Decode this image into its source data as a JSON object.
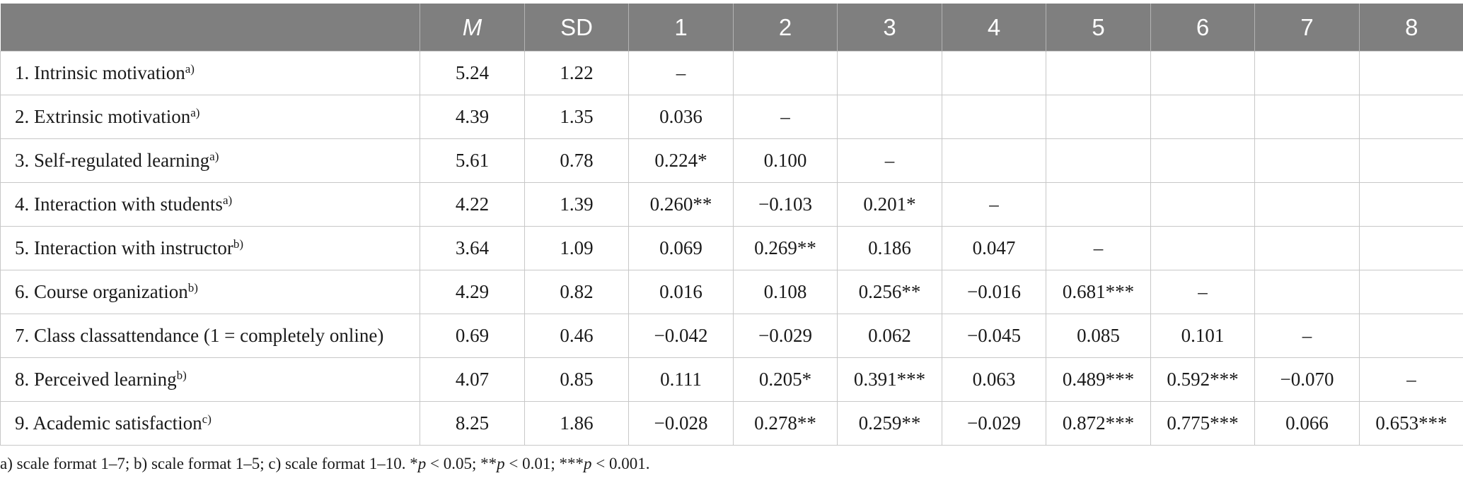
{
  "table": {
    "headers": [
      "",
      "M",
      "SD",
      "1",
      "2",
      "3",
      "4",
      "5",
      "6",
      "7",
      "8"
    ],
    "rows": [
      {
        "label": "1. Intrinsic motivation",
        "sup": "a)",
        "cells": [
          "5.24",
          "1.22",
          "–",
          "",
          "",
          "",
          "",
          "",
          "",
          ""
        ]
      },
      {
        "label": "2. Extrinsic motivation",
        "sup": "a)",
        "cells": [
          "4.39",
          "1.35",
          "0.036",
          "–",
          "",
          "",
          "",
          "",
          "",
          ""
        ]
      },
      {
        "label": "3. Self-regulated learning",
        "sup": "a)",
        "cells": [
          "5.61",
          "0.78",
          "0.224*",
          "0.100",
          "–",
          "",
          "",
          "",
          "",
          ""
        ]
      },
      {
        "label": "4. Interaction with students",
        "sup": "a)",
        "cells": [
          "4.22",
          "1.39",
          "0.260**",
          "−0.103",
          "0.201*",
          "–",
          "",
          "",
          "",
          ""
        ]
      },
      {
        "label": "5. Interaction with instructor",
        "sup": "b)",
        "cells": [
          "3.64",
          "1.09",
          "0.069",
          "0.269**",
          "0.186",
          "0.047",
          "–",
          "",
          "",
          ""
        ]
      },
      {
        "label": "6. Course organization",
        "sup": "b)",
        "cells": [
          "4.29",
          "0.82",
          "0.016",
          "0.108",
          "0.256**",
          "−0.016",
          "0.681***",
          "–",
          "",
          ""
        ]
      },
      {
        "label": "7. Class classattendance (1 = completely online)",
        "sup": "",
        "cells": [
          "0.69",
          "0.46",
          "−0.042",
          "−0.029",
          "0.062",
          "−0.045",
          "0.085",
          "0.101",
          "–",
          ""
        ]
      },
      {
        "label": "8. Perceived learning",
        "sup": "b)",
        "cells": [
          "4.07",
          "0.85",
          "0.111",
          "0.205*",
          "0.391***",
          "0.063",
          "0.489***",
          "0.592***",
          "−0.070",
          "–"
        ]
      },
      {
        "label": "9. Academic satisfaction",
        "sup": "c)",
        "cells": [
          "8.25",
          "1.86",
          "−0.028",
          "0.278**",
          "0.259**",
          "−0.029",
          "0.872***",
          "0.775***",
          "0.066",
          "0.653***"
        ]
      }
    ]
  },
  "footnote": {
    "a": "a) scale format 1–7; b) scale format 1–5; c) scale format 1–10. *",
    "p1": "p",
    "b": " < 0.05; **",
    "p2": "p",
    "c": " < 0.01; ***",
    "p3": "p",
    "d": " < 0.001."
  }
}
